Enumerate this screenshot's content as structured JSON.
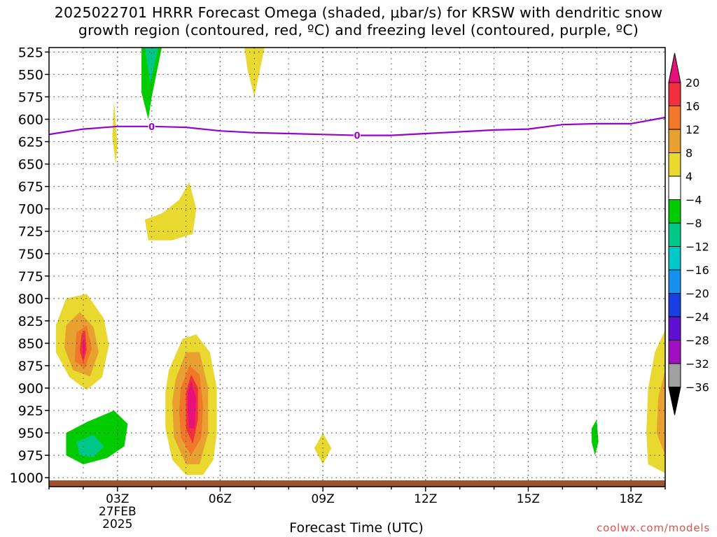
{
  "title": {
    "line1": "2025022701 HRRR Forecast Omega (shaded, μbar/s) for KRSW with dendritic snow",
    "line2": "growth region (contoured, red, ºC) and freezing level (contoured, purple, ºC)"
  },
  "credit": "coolwx.com/models",
  "chart_data": {
    "type": "heatmap",
    "title": "2025022701 HRRR Forecast Omega (shaded, μbar/s) for KRSW with dendritic snow growth region (contoured, red, ºC) and freezing level (contoured, purple, ºC)",
    "xlabel": "Forecast Time (UTC)",
    "x_ticks": [
      {
        "hour": 3,
        "label": "03Z",
        "sub": [
          "27FEB",
          "2025"
        ]
      },
      {
        "hour": 6,
        "label": "06Z"
      },
      {
        "hour": 9,
        "label": "09Z"
      },
      {
        "hour": 12,
        "label": "12Z"
      },
      {
        "hour": 15,
        "label": "15Z"
      },
      {
        "hour": 18,
        "label": "18Z"
      }
    ],
    "x_range_hours": [
      1,
      19
    ],
    "y_ticks": [
      525,
      550,
      575,
      600,
      625,
      650,
      675,
      700,
      725,
      750,
      775,
      800,
      825,
      850,
      875,
      900,
      925,
      950,
      975,
      1000
    ],
    "y_range_hPa": [
      520,
      1010
    ],
    "grid": true,
    "colorbar": {
      "placement": "right",
      "labels": [
        "20",
        "16",
        "12",
        "8",
        "4",
        "-4",
        "-8",
        "-12",
        "-16",
        "-20",
        "-24",
        "-28",
        "-32",
        "-36"
      ],
      "bands": [
        {
          "lo": 20,
          "hi": 24,
          "color": "#e8107a"
        },
        {
          "lo": 16,
          "hi": 20,
          "color": "#f0303c"
        },
        {
          "lo": 12,
          "hi": 16,
          "color": "#f07828"
        },
        {
          "lo": 8,
          "hi": 12,
          "color": "#e8a030"
        },
        {
          "lo": 4,
          "hi": 8,
          "color": "#e8d830"
        },
        {
          "lo": -4,
          "hi": 4,
          "color": "#ffffff"
        },
        {
          "lo": -8,
          "hi": -4,
          "color": "#00cc00"
        },
        {
          "lo": -12,
          "hi": -8,
          "color": "#00c888"
        },
        {
          "lo": -16,
          "hi": -12,
          "color": "#00c8c8"
        },
        {
          "lo": -20,
          "hi": -16,
          "color": "#1890f0"
        },
        {
          "lo": -24,
          "hi": -20,
          "color": "#1840e0"
        },
        {
          "lo": -28,
          "hi": -24,
          "color": "#6010d0"
        },
        {
          "lo": -32,
          "hi": -28,
          "color": "#a010c0"
        },
        {
          "lo": -36,
          "hi": -32,
          "color": "#a0a0a0"
        },
        {
          "lo": -40,
          "hi": -36,
          "color": "#000000"
        }
      ]
    },
    "freezing_level": {
      "label": "0",
      "color": "#9900cc",
      "points": [
        [
          1.0,
          617
        ],
        [
          2.0,
          611
        ],
        [
          3.0,
          608
        ],
        [
          4.0,
          608
        ],
        [
          5.0,
          609
        ],
        [
          6.0,
          613
        ],
        [
          7.0,
          615
        ],
        [
          8.0,
          616
        ],
        [
          9.0,
          617
        ],
        [
          10.0,
          618
        ],
        [
          11.0,
          618
        ],
        [
          12.0,
          616
        ],
        [
          13.0,
          614
        ],
        [
          14.0,
          612
        ],
        [
          15.0,
          611
        ],
        [
          16.0,
          606
        ],
        [
          17.0,
          605
        ],
        [
          18.0,
          605
        ],
        [
          19.0,
          598
        ]
      ],
      "label_positions": [
        [
          4.0,
          608
        ],
        [
          10.0,
          618
        ]
      ]
    },
    "omega_regions": [
      {
        "value": -4,
        "points": [
          [
            3.5,
            519
          ],
          [
            4.5,
            519
          ],
          [
            4.2,
            556
          ],
          [
            4.1,
            586
          ],
          [
            3.9,
            616
          ],
          [
            3.7,
            641
          ],
          [
            3.5,
            610
          ],
          [
            3.4,
            560
          ]
        ]
      },
      {
        "value": -8,
        "points": [
          [
            3.7,
            519
          ],
          [
            4.3,
            519
          ],
          [
            4.0,
            575
          ],
          [
            3.9,
            600
          ],
          [
            3.7,
            570
          ]
        ]
      },
      {
        "value": -12,
        "points": [
          [
            3.8,
            519
          ],
          [
            4.2,
            519
          ],
          [
            3.95,
            560
          ]
        ]
      },
      {
        "value": -4,
        "points": [
          [
            4.5,
            519
          ],
          [
            5.1,
            519
          ],
          [
            5.4,
            538
          ],
          [
            4.8,
            556
          ]
        ]
      },
      {
        "value": 4,
        "points": [
          [
            2.9,
            580
          ],
          [
            3.0,
            630
          ],
          [
            2.95,
            650
          ],
          [
            2.85,
            620
          ]
        ]
      },
      {
        "value": 4,
        "points": [
          [
            6.7,
            519
          ],
          [
            7.3,
            519
          ],
          [
            7.0,
            575
          ],
          [
            6.8,
            545
          ]
        ]
      },
      {
        "value": -4,
        "points": [
          [
            2.0,
            665
          ],
          [
            2.4,
            710
          ],
          [
            2.5,
            745
          ],
          [
            2.3,
            765
          ],
          [
            2.0,
            765
          ],
          [
            1.8,
            730
          ],
          [
            1.95,
            695
          ]
        ]
      },
      {
        "value": 4,
        "points": [
          [
            4.8,
            690
          ],
          [
            5.1,
            670
          ],
          [
            5.3,
            700
          ],
          [
            5.2,
            728
          ],
          [
            4.6,
            735
          ],
          [
            3.9,
            735
          ],
          [
            3.8,
            712
          ],
          [
            4.3,
            705
          ]
        ]
      },
      {
        "value": 4,
        "points": [
          [
            1.2,
            830
          ],
          [
            1.5,
            800
          ],
          [
            2.1,
            795
          ],
          [
            2.6,
            822
          ],
          [
            2.75,
            852
          ],
          [
            2.55,
            888
          ],
          [
            2.1,
            902
          ],
          [
            1.6,
            888
          ],
          [
            1.2,
            860
          ]
        ]
      },
      {
        "value": 8,
        "points": [
          [
            1.5,
            830
          ],
          [
            1.9,
            815
          ],
          [
            2.3,
            832
          ],
          [
            2.45,
            860
          ],
          [
            2.2,
            887
          ],
          [
            1.7,
            880
          ],
          [
            1.45,
            855
          ]
        ]
      },
      {
        "value": 12,
        "points": [
          [
            1.8,
            838
          ],
          [
            2.1,
            830
          ],
          [
            2.25,
            856
          ],
          [
            2.05,
            878
          ],
          [
            1.75,
            870
          ]
        ]
      },
      {
        "value": 16,
        "points": [
          [
            1.95,
            840
          ],
          [
            2.05,
            835
          ],
          [
            2.1,
            857
          ],
          [
            2.0,
            872
          ],
          [
            1.9,
            858
          ]
        ]
      },
      {
        "value": 20,
        "points": [
          [
            1.98,
            848
          ],
          [
            2.03,
            845
          ],
          [
            2.05,
            858
          ],
          [
            2.0,
            866
          ]
        ]
      },
      {
        "value": -4,
        "points": [
          [
            1.3,
            935
          ],
          [
            1.8,
            922
          ],
          [
            2.4,
            905
          ],
          [
            2.9,
            880
          ],
          [
            3.3,
            860
          ],
          [
            3.5,
            850
          ],
          [
            3.7,
            825
          ],
          [
            4.0,
            805
          ],
          [
            4.3,
            812
          ],
          [
            4.4,
            840
          ],
          [
            4.2,
            875
          ],
          [
            4.1,
            930
          ],
          [
            3.8,
            965
          ],
          [
            3.2,
            975
          ],
          [
            2.5,
            997
          ],
          [
            2.0,
            997
          ],
          [
            1.4,
            990
          ],
          [
            1.2,
            960
          ]
        ]
      },
      {
        "value": -8,
        "points": [
          [
            1.5,
            950
          ],
          [
            2.1,
            938
          ],
          [
            2.9,
            925
          ],
          [
            3.3,
            940
          ],
          [
            3.2,
            965
          ],
          [
            2.7,
            978
          ],
          [
            2.0,
            985
          ],
          [
            1.5,
            975
          ]
        ]
      },
      {
        "value": -12,
        "points": [
          [
            1.8,
            960
          ],
          [
            2.3,
            952
          ],
          [
            2.6,
            965
          ],
          [
            2.3,
            977
          ],
          [
            1.9,
            975
          ]
        ]
      },
      {
        "value": 4,
        "points": [
          [
            4.5,
            880
          ],
          [
            4.9,
            845
          ],
          [
            5.3,
            840
          ],
          [
            5.7,
            860
          ],
          [
            5.9,
            900
          ],
          [
            5.9,
            950
          ],
          [
            5.8,
            980
          ],
          [
            5.5,
            997
          ],
          [
            5.0,
            997
          ],
          [
            4.6,
            980
          ],
          [
            4.4,
            945
          ],
          [
            4.4,
            905
          ]
        ]
      },
      {
        "value": 8,
        "points": [
          [
            4.7,
            890
          ],
          [
            5.0,
            860
          ],
          [
            5.4,
            860
          ],
          [
            5.65,
            900
          ],
          [
            5.65,
            950
          ],
          [
            5.4,
            985
          ],
          [
            5.0,
            985
          ],
          [
            4.65,
            955
          ],
          [
            4.6,
            915
          ]
        ]
      },
      {
        "value": 12,
        "points": [
          [
            4.85,
            900
          ],
          [
            5.1,
            875
          ],
          [
            5.4,
            885
          ],
          [
            5.5,
            920
          ],
          [
            5.45,
            955
          ],
          [
            5.15,
            975
          ],
          [
            4.85,
            955
          ],
          [
            4.8,
            925
          ]
        ]
      },
      {
        "value": 16,
        "points": [
          [
            5.0,
            905
          ],
          [
            5.15,
            885
          ],
          [
            5.35,
            900
          ],
          [
            5.35,
            935
          ],
          [
            5.2,
            962
          ],
          [
            5.0,
            945
          ]
        ]
      },
      {
        "value": 20,
        "points": [
          [
            5.05,
            905
          ],
          [
            5.15,
            892
          ],
          [
            5.3,
            912
          ],
          [
            5.25,
            945
          ],
          [
            5.1,
            945
          ],
          [
            5.05,
            925
          ]
        ]
      },
      {
        "value": 4,
        "points": [
          [
            9.0,
            950
          ],
          [
            9.25,
            967
          ],
          [
            9.0,
            985
          ],
          [
            8.75,
            967
          ]
        ]
      },
      {
        "value": -4,
        "points": [
          [
            16.6,
            925
          ],
          [
            16.8,
            895
          ],
          [
            18.0,
            895
          ],
          [
            17.9,
            930
          ],
          [
            17.6,
            965
          ],
          [
            17.3,
            987
          ],
          [
            16.9,
            990
          ],
          [
            16.5,
            975
          ],
          [
            16.5,
            945
          ]
        ]
      },
      {
        "value": -8,
        "points": [
          [
            16.85,
            945
          ],
          [
            17.0,
            935
          ],
          [
            17.05,
            960
          ],
          [
            16.95,
            975
          ],
          [
            16.85,
            960
          ]
        ]
      },
      {
        "value": 4,
        "points": [
          [
            19.0,
            835
          ],
          [
            19.1,
            835
          ],
          [
            19.1,
            995
          ],
          [
            19.0,
            995
          ],
          [
            18.5,
            985
          ],
          [
            18.45,
            950
          ],
          [
            18.5,
            900
          ],
          [
            18.7,
            860
          ]
        ]
      },
      {
        "value": 8,
        "points": [
          [
            19.0,
            880
          ],
          [
            19.1,
            880
          ],
          [
            19.1,
            975
          ],
          [
            19.0,
            975
          ],
          [
            18.75,
            950
          ],
          [
            18.8,
            910
          ]
        ]
      }
    ]
  }
}
